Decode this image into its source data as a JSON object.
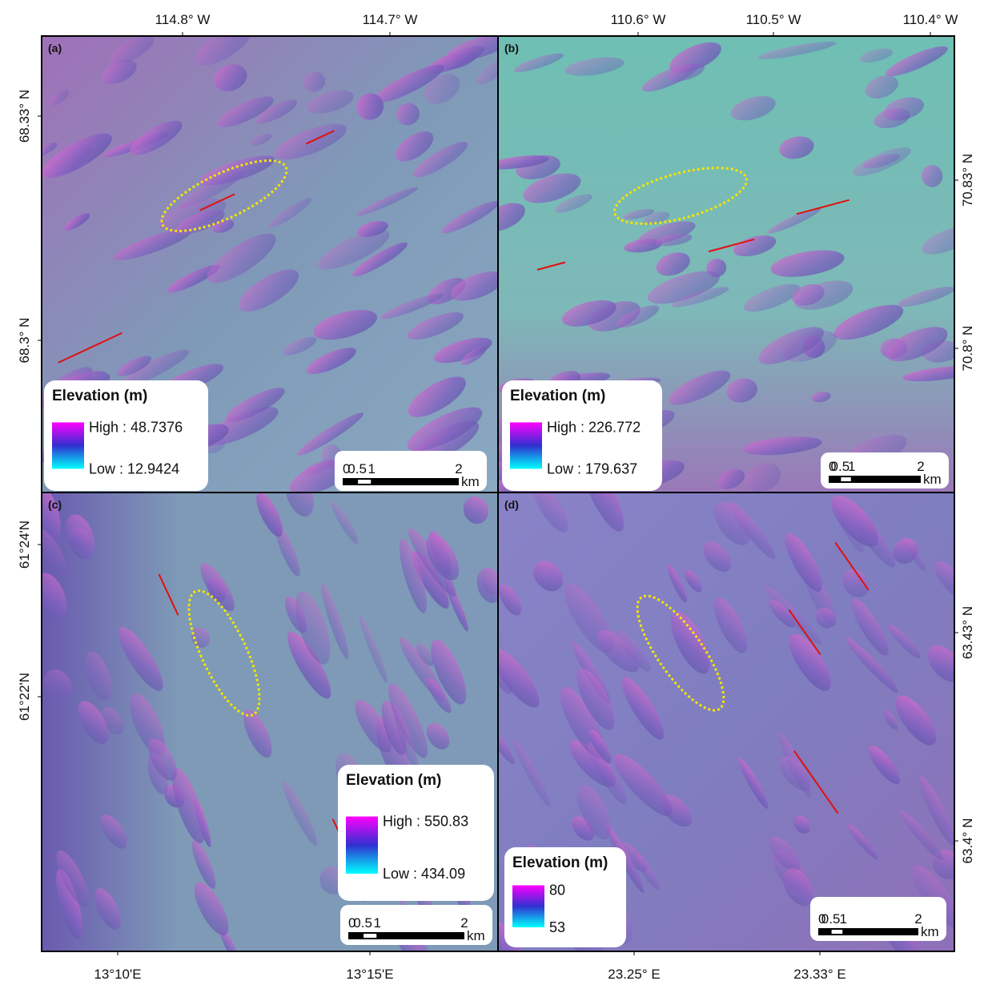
{
  "panels": [
    {
      "label": "(a)",
      "x_ticks": [
        "114.8° W",
        "114.7° W"
      ],
      "y_ticks": [
        "68.33° N",
        "68.3° N"
      ],
      "legend": {
        "title": "Elevation (m)",
        "high": "High : 48.7376",
        "low": "Low : 12.9424"
      },
      "scale": [
        "0",
        "0.5",
        "1",
        "2",
        "km"
      ]
    },
    {
      "label": "(b)",
      "x_ticks": [
        "110.6° W",
        "110.5° W",
        "110.4° W"
      ],
      "y_ticks": [
        "70.83° N",
        "70.8° N"
      ],
      "legend": {
        "title": "Elevation (m)",
        "high": "High : 226.772",
        "low": "Low : 179.637"
      },
      "scale": [
        "0",
        "0.5",
        "1",
        "2",
        "km"
      ]
    },
    {
      "label": "(c)",
      "x_ticks": [
        "13°10'E",
        "13°15'E"
      ],
      "y_ticks": [
        "61°24'N",
        "61°22'N"
      ],
      "legend": {
        "title": "Elevation (m)",
        "high": "High : 550.83",
        "low": "Low : 434.09"
      },
      "scale": [
        "0",
        "0.5",
        "1",
        "2",
        "km"
      ]
    },
    {
      "label": "(d)",
      "x_ticks": [
        "23.25° E",
        "23.33° E"
      ],
      "y_ticks": [
        "63.43° N",
        "63.4° N"
      ],
      "legend": {
        "title": "Elevation (m)",
        "high": "80",
        "low": "53"
      },
      "scale": [
        "0",
        "0.5",
        "1",
        "2",
        "km"
      ]
    }
  ]
}
